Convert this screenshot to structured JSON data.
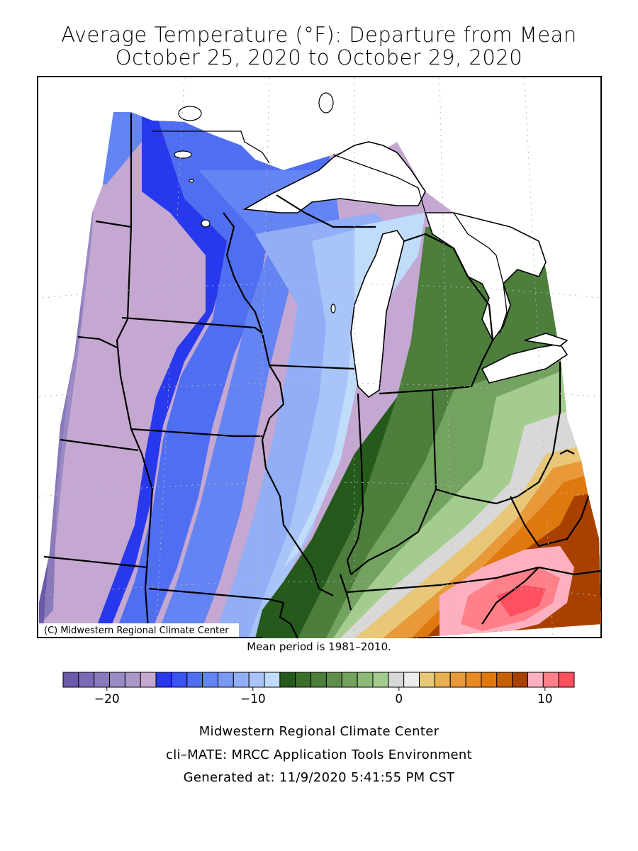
{
  "title_line1": "Average Temperature (°F): Departure from Mean",
  "title_line2": "October 25, 2020 to October 29, 2020",
  "map_copyright": "(C) Midwestern Regional Climate Center",
  "mean_period_note": "Mean period is 1981–2010.",
  "credits": {
    "org": "Midwestern Regional Climate Center",
    "tool": "cli–MATE: MRCC Application Tools Environment",
    "generated": "Generated at: 11/9/2020 5:41:55 PM CST"
  },
  "legend": {
    "min": -23,
    "max": 12,
    "step": 1,
    "tick_values": [
      -20,
      -10,
      0,
      10
    ],
    "tick_labels": [
      "−20",
      "−10",
      "0",
      "10"
    ],
    "colors": [
      "#6b5aa8",
      "#7c6ab4",
      "#8b7abb",
      "#9a8ac4",
      "#ab98c9",
      "#c4a8d2",
      "#2838ec",
      "#3b55f2",
      "#4f6ef2",
      "#6484f4",
      "#7a98f4",
      "#92aef6",
      "#a8c4f8",
      "#c0dcfa",
      "#255a1c",
      "#3a6e2a",
      "#4d7e3c",
      "#5f8e4c",
      "#74a260",
      "#8cb878",
      "#a4cc8e",
      "#d8d8d8",
      "#ececec",
      "#e8c878",
      "#e8b050",
      "#e89a3a",
      "#e88a24",
      "#e07810",
      "#c86008",
      "#a84000",
      "#ffb0c0",
      "#ff8088",
      "#ff5060"
    ]
  }
}
